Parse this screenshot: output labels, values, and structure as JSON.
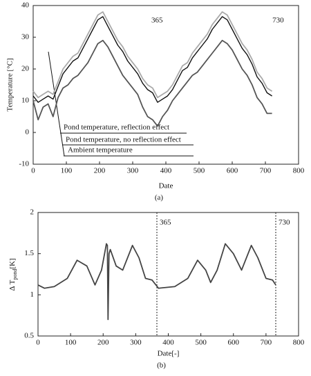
{
  "chart_data": [
    {
      "type": "line",
      "xlabel": "Date",
      "ylabel": "Temperature  [°C]",
      "caption": "(a)",
      "xlim": [
        0,
        800
      ],
      "ylim": [
        -10,
        40
      ],
      "xticks": [
        0,
        100,
        200,
        300,
        400,
        500,
        600,
        700,
        800
      ],
      "yticks": [
        -10,
        0,
        10,
        20,
        30,
        40
      ],
      "markers": [
        365,
        730
      ],
      "x": [
        0,
        15,
        30,
        45,
        60,
        75,
        90,
        105,
        120,
        135,
        150,
        165,
        180,
        195,
        210,
        225,
        240,
        255,
        270,
        285,
        300,
        315,
        330,
        345,
        360,
        375,
        390,
        405,
        420,
        435,
        450,
        465,
        480,
        495,
        510,
        525,
        540,
        555,
        570,
        585,
        600,
        615,
        630,
        645,
        660,
        675,
        690,
        705,
        720
      ],
      "series": [
        {
          "name": "Pond temperature, reflection effect",
          "color": "#aaaaaa",
          "values": [
            13,
            11,
            12,
            13,
            12,
            16,
            20,
            22,
            24,
            25,
            28,
            31,
            34,
            37,
            38,
            35,
            32,
            29,
            27,
            24,
            22,
            20,
            17,
            15,
            14,
            11,
            12,
            13,
            15,
            18,
            21,
            22,
            25,
            27,
            29,
            31,
            34,
            36,
            38,
            37,
            34,
            31,
            28,
            26,
            23,
            19,
            17,
            14,
            13
          ]
        },
        {
          "name": "Pond temperature, no reflection effect",
          "color": "#111111",
          "values": [
            11.5,
            9.5,
            10.5,
            11.5,
            10.5,
            14.5,
            18.5,
            20.5,
            22.5,
            23.5,
            26.5,
            29.5,
            32.5,
            35.5,
            36.5,
            33.5,
            30.5,
            27.5,
            25.5,
            22.5,
            20.5,
            18.5,
            15.5,
            13.5,
            12.5,
            9.5,
            10.5,
            11.5,
            13.5,
            16.5,
            19.5,
            20.5,
            23.5,
            25.5,
            27.5,
            29.5,
            32.5,
            34.5,
            36.5,
            35.5,
            32.5,
            29.5,
            26.5,
            24.5,
            21.5,
            17.5,
            15.5,
            12.5,
            11.5
          ]
        },
        {
          "name": "Ambient temperature",
          "color": "#555555",
          "values": [
            10,
            4,
            8,
            9,
            5,
            11,
            14,
            15,
            17,
            18,
            20,
            22,
            25,
            28,
            29,
            27,
            24,
            21,
            18,
            16,
            14,
            12,
            8,
            5,
            4,
            2,
            5,
            7,
            10,
            12,
            14,
            16,
            18,
            19,
            21,
            23,
            25,
            27,
            29,
            28,
            26,
            23,
            20,
            18,
            15,
            11,
            9,
            6,
            6
          ]
        }
      ]
    },
    {
      "type": "line",
      "xlabel": "Date[-]",
      "ylabel": {
        "main": "Δ T",
        "sub": "pond",
        "unit": "[K]"
      },
      "caption": "(b)",
      "xlim": [
        0,
        800
      ],
      "ylim": [
        0.5,
        2
      ],
      "xticks": [
        0,
        100,
        200,
        300,
        400,
        500,
        600,
        700,
        800
      ],
      "yticks": [
        0.5,
        1,
        1.5,
        2
      ],
      "vlines": [
        365,
        730
      ],
      "x": [
        0,
        20,
        50,
        90,
        120,
        150,
        175,
        195,
        210,
        213,
        215,
        218,
        222,
        240,
        260,
        290,
        310,
        330,
        350,
        370,
        420,
        460,
        490,
        515,
        530,
        550,
        575,
        600,
        625,
        655,
        675,
        700,
        720,
        730
      ],
      "series": [
        {
          "name": "ΔT pond",
          "color": "#444444",
          "values": [
            1.12,
            1.08,
            1.1,
            1.2,
            1.42,
            1.35,
            1.12,
            1.3,
            1.62,
            1.6,
            0.7,
            1.5,
            1.55,
            1.35,
            1.3,
            1.6,
            1.45,
            1.2,
            1.18,
            1.08,
            1.1,
            1.2,
            1.42,
            1.3,
            1.15,
            1.3,
            1.62,
            1.5,
            1.3,
            1.6,
            1.45,
            1.2,
            1.18,
            1.12
          ]
        }
      ]
    }
  ]
}
